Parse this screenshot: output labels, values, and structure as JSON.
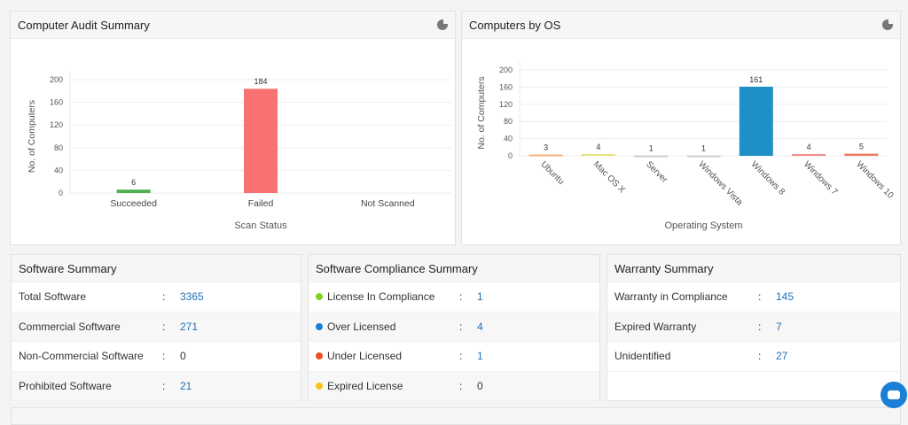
{
  "audit": {
    "title": "Computer Audit Summary",
    "chart_data": {
      "type": "bar",
      "categories": [
        "Succeeded",
        "Failed",
        "Not Scanned"
      ],
      "values": [
        6,
        184,
        0
      ],
      "colors": [
        "#4caf50",
        "#f87272",
        "#999999"
      ],
      "xlabel": "Scan Status",
      "ylabel": "No. of Computers",
      "ylim": [
        0,
        200
      ],
      "yticks": [
        0,
        40,
        80,
        120,
        160,
        200
      ],
      "data_labels": [
        "6",
        "184",
        ""
      ],
      "grid": true
    }
  },
  "os": {
    "title": "Computers by OS",
    "chart_data": {
      "type": "bar",
      "categories": [
        "Ubuntu",
        "Mac OS X",
        "Server",
        "Windows Vista",
        "Windows 8",
        "Windows 7",
        "Windows 10"
      ],
      "values": [
        3,
        4,
        1,
        1,
        161,
        4,
        5
      ],
      "colors": [
        "#f6b27a",
        "#e8e27a",
        "#cccccc",
        "#cccccc",
        "#1f8fc8",
        "#f08a8a",
        "#ee7b5e"
      ],
      "xlabel": "Operating System",
      "ylabel": "No. of Computers",
      "ylim": [
        0,
        200
      ],
      "yticks": [
        0,
        40,
        80,
        120,
        160,
        200
      ],
      "data_labels": [
        "3",
        "4",
        "1",
        "1",
        "161",
        "4",
        "5"
      ],
      "grid": true
    }
  },
  "software": {
    "title": "Software Summary",
    "rows": [
      {
        "label": "Total Software",
        "value": "3365",
        "link": true
      },
      {
        "label": "Commercial Software",
        "value": "271",
        "link": true
      },
      {
        "label": "Non-Commercial Software",
        "value": "0",
        "link": false
      },
      {
        "label": "Prohibited Software",
        "value": "21",
        "link": true
      }
    ]
  },
  "compliance": {
    "title": "Software Compliance Summary",
    "rows": [
      {
        "label": "License In Compliance",
        "value": "1",
        "color": "#7ed321",
        "link": true
      },
      {
        "label": "Over Licensed",
        "value": "4",
        "color": "#1a7fd6",
        "link": true
      },
      {
        "label": "Under Licensed",
        "value": "1",
        "color": "#f04e23",
        "link": true
      },
      {
        "label": "Expired License",
        "value": "0",
        "color": "#f5c518",
        "link": false
      }
    ]
  },
  "warranty": {
    "title": "Warranty Summary",
    "rows": [
      {
        "label": "Warranty in Compliance",
        "value": "145",
        "link": true
      },
      {
        "label": "Expired Warranty",
        "value": "7",
        "link": true
      },
      {
        "label": "Unidentified",
        "value": "27",
        "link": true
      }
    ]
  },
  "colon": ":"
}
